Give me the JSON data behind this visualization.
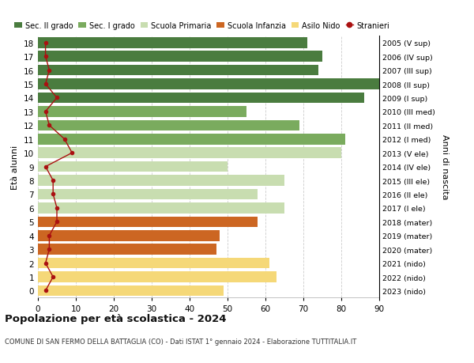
{
  "title": "Popolazione per età scolastica - 2024",
  "subtitle": "COMUNE DI SAN FERMO DELLA BATTAGLIA (CO) - Dati ISTAT 1° gennaio 2024 - Elaborazione TUTTITALIA.IT",
  "ylabel_left": "Età alunni",
  "ylabel_right": "Anni di nascita",
  "xlim": [
    0,
    90
  ],
  "xticks": [
    0,
    10,
    20,
    30,
    40,
    50,
    60,
    70,
    80,
    90
  ],
  "ages": [
    18,
    17,
    16,
    15,
    14,
    13,
    12,
    11,
    10,
    9,
    8,
    7,
    6,
    5,
    4,
    3,
    2,
    1,
    0
  ],
  "years": [
    "2005 (V sup)",
    "2006 (IV sup)",
    "2007 (III sup)",
    "2008 (II sup)",
    "2009 (I sup)",
    "2010 (III med)",
    "2011 (II med)",
    "2012 (I med)",
    "2013 (V ele)",
    "2014 (IV ele)",
    "2015 (III ele)",
    "2016 (II ele)",
    "2017 (I ele)",
    "2018 (mater)",
    "2019 (mater)",
    "2020 (mater)",
    "2021 (nido)",
    "2022 (nido)",
    "2023 (nido)"
  ],
  "bar_values": [
    71,
    75,
    74,
    90,
    86,
    55,
    69,
    81,
    80,
    50,
    65,
    58,
    65,
    58,
    48,
    47,
    61,
    63,
    49
  ],
  "bar_colors": [
    "#4a7c3f",
    "#4a7c3f",
    "#4a7c3f",
    "#4a7c3f",
    "#4a7c3f",
    "#7aab5e",
    "#7aab5e",
    "#7aab5e",
    "#c8ddb0",
    "#c8ddb0",
    "#c8ddb0",
    "#c8ddb0",
    "#c8ddb0",
    "#cc6622",
    "#cc6622",
    "#cc6622",
    "#f5d878",
    "#f5d878",
    "#f5d878"
  ],
  "stranieri_values": [
    2,
    2,
    3,
    2,
    5,
    2,
    3,
    7,
    9,
    2,
    4,
    4,
    5,
    5,
    3,
    3,
    2,
    4,
    2
  ],
  "stranieri_color": "#aa1111",
  "legend_labels": [
    "Sec. II grado",
    "Sec. I grado",
    "Scuola Primaria",
    "Scuola Infanzia",
    "Asilo Nido",
    "Stranieri"
  ],
  "legend_colors": [
    "#4a7c3f",
    "#7aab5e",
    "#c8ddb0",
    "#cc6622",
    "#f5d878",
    "#aa1111"
  ],
  "bg_color": "#ffffff",
  "grid_color": "#cccccc",
  "bar_height": 0.78
}
